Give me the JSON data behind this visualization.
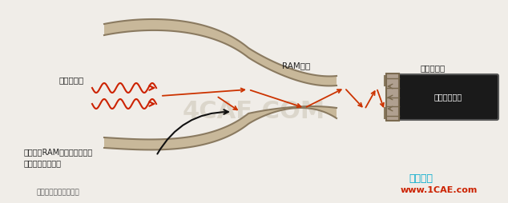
{
  "bg_color": "#f0ede8",
  "duct_color": "#c8b89a",
  "duct_edge_color": "#8a7a60",
  "duct_thickness": 8,
  "engine_bg": "#1a1a1a",
  "engine_text": "喷气式发动机",
  "engine_text_color": "#ffffff",
  "fan_section_color": "#b0a090",
  "fan_edge_color": "#7a6a50",
  "radar_wave_color": "#cc2200",
  "reflect_arrow_color": "#cc3300",
  "black_arrow_color": "#111111",
  "label_radar": "入射雷达波",
  "label_RAM": "RAM衬里",
  "label_fan": "发动机风扇",
  "label_energy": "能量在带RAM衬里的管道壁之\n间反射并逐渐衰减",
  "label_bottom": "进气道隐身技术示意图",
  "label_sim1": "仿真在线",
  "label_sim2": "www.1CAE.com",
  "sim1_color": "#00aacc",
  "sim2_color": "#cc2200",
  "watermark_color": "#c8c0b0",
  "watermark_text": "4CAE.COM"
}
